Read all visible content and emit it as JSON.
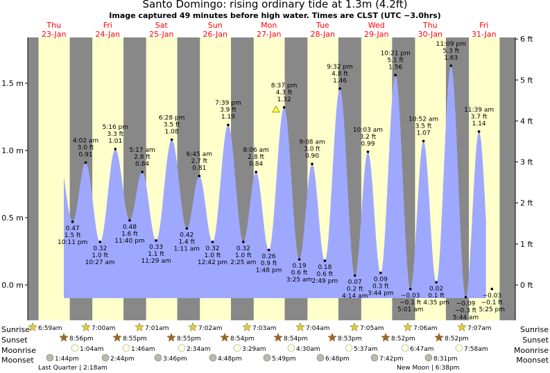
{
  "title": "Santo Domingo: rising  ordinary tide at 1.3m (4.2ft)",
  "subtitle": "Image captured 49 minutes before high water. Times are CLST (UTC −3.0hrs)",
  "chart_data": {
    "type": "area",
    "title": "Santo Domingo: rising  ordinary tide at 1.3m (4.2ft)",
    "subtitle": "Image captured 49 minutes before high water. Times are CLST (UTC −3.0hrs)",
    "days": [
      {
        "dow": "Thu",
        "date": "23-Jan"
      },
      {
        "dow": "Fri",
        "date": "24-Jan"
      },
      {
        "dow": "Sat",
        "date": "25-Jan"
      },
      {
        "dow": "Sun",
        "date": "26-Jan"
      },
      {
        "dow": "Mon",
        "date": "27-Jan"
      },
      {
        "dow": "Tue",
        "date": "28-Jan"
      },
      {
        "dow": "Wed",
        "date": "29-Jan"
      },
      {
        "dow": "Thu",
        "date": "30-Jan"
      },
      {
        "dow": "Fri",
        "date": "31-Jan"
      }
    ],
    "y_left": {
      "unit": "m",
      "ticks": [
        {
          "v": 0,
          "label": "0.0 m"
        },
        {
          "v": 0.5,
          "label": "0.5 m"
        },
        {
          "v": 1.0,
          "label": "1.0 m"
        },
        {
          "v": 1.5,
          "label": "1.5 m"
        }
      ]
    },
    "y_right": {
      "unit": "ft",
      "ticks": [
        {
          "v": 0,
          "label": "0 ft"
        },
        {
          "v": 1,
          "label": "1 ft"
        },
        {
          "v": 2,
          "label": "2 ft"
        },
        {
          "v": 3,
          "label": "3 ft"
        },
        {
          "v": 4,
          "label": "4 ft"
        },
        {
          "v": 5,
          "label": "5 ft"
        },
        {
          "v": 6,
          "label": "6 ft"
        }
      ]
    },
    "ylim_m": [
      -0.2,
      1.84
    ],
    "extremes": [
      {
        "type": "low",
        "time": "10:11 pm",
        "m": 0.47,
        "ft": "1.5 ft",
        "m_label": "0.47 m"
      },
      {
        "type": "high",
        "time": "4:02 am",
        "m": 0.91,
        "ft": "3.0 ft",
        "m_label": "0.91 m"
      },
      {
        "type": "low",
        "time": "10:27 am",
        "m": 0.32,
        "ft": "1.0 ft",
        "m_label": "0.32 m"
      },
      {
        "type": "high",
        "time": "5:16 pm",
        "m": 1.01,
        "ft": "3.3 ft",
        "m_label": "1.01 m"
      },
      {
        "type": "low",
        "time": "11:40 pm",
        "m": 0.48,
        "ft": "1.6 ft",
        "m_label": "0.48 m"
      },
      {
        "type": "high",
        "time": "5:17 am",
        "m": 0.84,
        "ft": "2.8 ft",
        "m_label": "0.84 m"
      },
      {
        "type": "low",
        "time": "11:29 am",
        "m": 0.33,
        "ft": "1.1 ft",
        "m_label": "0.33 m"
      },
      {
        "type": "high",
        "time": "6:28 pm",
        "m": 1.08,
        "ft": "3.5 ft",
        "m_label": "1.08 m"
      },
      {
        "type": "low",
        "time": "1:11 am",
        "m": 0.42,
        "ft": "1.4 ft",
        "m_label": "0.42 m"
      },
      {
        "type": "high",
        "time": "6:45 am",
        "m": 0.81,
        "ft": "2.7 ft",
        "m_label": "0.81 m"
      },
      {
        "type": "low",
        "time": "12:42 pm",
        "m": 0.32,
        "ft": "1.0 ft",
        "m_label": "0.32 m"
      },
      {
        "type": "high",
        "time": "7:39 pm",
        "m": 1.19,
        "ft": "3.9 ft",
        "m_label": "1.19 m"
      },
      {
        "type": "low",
        "time": "2:25 am",
        "m": 0.32,
        "ft": "1.0 ft",
        "m_label": "0.32 m"
      },
      {
        "type": "high",
        "time": "8:06 am",
        "m": 0.84,
        "ft": "2.8 ft",
        "m_label": "0.84 m"
      },
      {
        "type": "low",
        "time": "1:48 pm",
        "m": 0.26,
        "ft": "0.9 ft",
        "m_label": "0.26 m"
      },
      {
        "type": "high",
        "time": "8:37 pm",
        "m": 1.32,
        "ft": "4.3 ft",
        "m_label": "1.32 m"
      },
      {
        "type": "low",
        "time": "3:25 am",
        "m": 0.19,
        "ft": "0.6 ft",
        "m_label": "0.19 m"
      },
      {
        "type": "high",
        "time": "9:08 am",
        "m": 0.9,
        "ft": "3.0 ft",
        "m_label": "0.90 m"
      },
      {
        "type": "low",
        "time": "2:49 pm",
        "m": 0.18,
        "ft": "0.6 ft",
        "m_label": "0.18 m"
      },
      {
        "type": "high",
        "time": "9:32 pm",
        "m": 1.46,
        "ft": "4.8 ft",
        "m_label": "1.46 m"
      },
      {
        "type": "low",
        "time": "4:14 am",
        "m": 0.07,
        "ft": "0.2 ft",
        "m_label": "0.07 m"
      },
      {
        "type": "high",
        "time": "10:03 am",
        "m": 0.99,
        "ft": "3.2 ft",
        "m_label": "0.99 m"
      },
      {
        "type": "low",
        "time": "3:44 pm",
        "m": 0.09,
        "ft": "0.3 ft",
        "m_label": "0.09 m"
      },
      {
        "type": "high",
        "time": "10:21 pm",
        "m": 1.56,
        "ft": "5.1 ft",
        "m_label": "1.56 m"
      },
      {
        "type": "low",
        "time": "5:01 am",
        "m": -0.03,
        "ft": "−0.1 ft",
        "m_label": "−0.03 m"
      },
      {
        "type": "high",
        "time": "10:52 am",
        "m": 1.07,
        "ft": "3.5 ft",
        "m_label": "1.07 m"
      },
      {
        "type": "low",
        "time": "4:35 pm",
        "m": 0.02,
        "ft": "0.1 ft",
        "m_label": "0.02 m"
      },
      {
        "type": "high",
        "time": "11:09 pm",
        "m": 1.63,
        "ft": "5.3 ft",
        "m_label": "1.63 m"
      },
      {
        "type": "low",
        "time": "5:44 am",
        "m": -0.09,
        "ft": "−0.3 ft",
        "m_label": "−0.09 m"
      },
      {
        "type": "high",
        "time": "11:39 am",
        "m": 1.14,
        "ft": "3.7 ft",
        "m_label": "1.14 m"
      },
      {
        "type": "low",
        "time": "5:25 pm",
        "m": -0.03,
        "ft": "−0.1 ft",
        "m_label": "−0.03 m"
      }
    ],
    "current": {
      "label": "rising",
      "m": 1.3
    },
    "sunrise": [
      "6:59am",
      "7:00am",
      "7:01am",
      "7:02am",
      "7:03am",
      "7:04am",
      "7:05am",
      "7:06am",
      "7:07am"
    ],
    "sunset": [
      "8:56pm",
      "8:55pm",
      "8:55pm",
      "8:54pm",
      "8:54pm",
      "8:53pm",
      "8:52pm",
      "8:52pm"
    ],
    "moonrise": [
      "1:04am",
      "1:46am",
      "2:34am",
      "3:29am",
      "4:30am",
      "5:37am",
      "6:47am",
      "7:58am"
    ],
    "moonset": [
      "1:44pm",
      "2:44pm",
      "3:46pm",
      "4:48pm",
      "5:49pm",
      "6:48pm",
      "7:42pm",
      "8:31pm"
    ],
    "row_labels": {
      "sunrise": "Sunrise",
      "sunset": "Sunset",
      "moonrise": "Moonrise",
      "moonset": "Moonset"
    },
    "moon_phases": [
      {
        "label": "Last Quarter",
        "time": "2:18am"
      },
      {
        "label": "New Moon",
        "time": "6:38pm"
      }
    ],
    "colors": {
      "tide": "#9fa8ff",
      "day": "#ffffcc",
      "night": "#888888",
      "date": "#ff0000",
      "star": "#ddcc44",
      "sunset_star": "#996633",
      "moon": "#ffffdd",
      "moonset": "#bbbbaa"
    }
  }
}
